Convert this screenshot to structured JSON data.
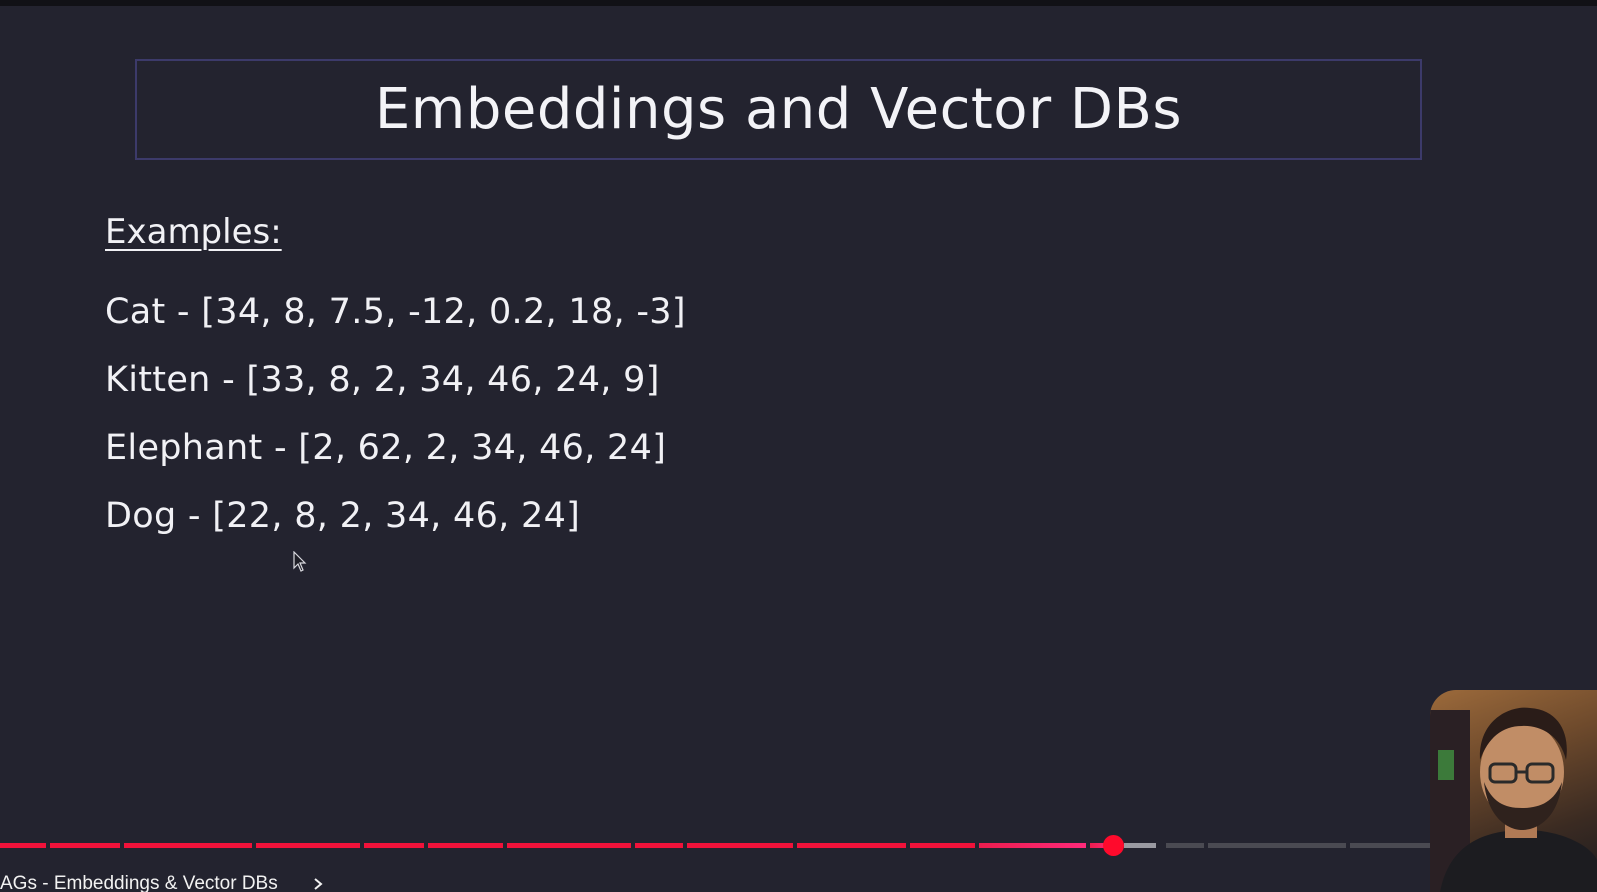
{
  "slide": {
    "title": "Embeddings and Vector DBs",
    "examples_heading": "Examples:",
    "examples": [
      "Cat - [34, 8, 7.5, -12, 0.2, 18, -3]",
      "Kitten - [33, 8, 2, 34, 46, 24, 9]",
      "Elephant - [2, 62, 2, 34, 46, 24]",
      "Dog - [22, 8, 2, 34, 46, 24]"
    ]
  },
  "player": {
    "chapter_title": "AGs - Embeddings & Vector DBs",
    "played_fraction": 0.7,
    "colors": {
      "played": "#f0123a",
      "scrubber": "#ff0a2c",
      "unplayed": "#4a4a52"
    }
  },
  "icons": {
    "cursor": "mouse-pointer-icon",
    "chevron": "chevron-right-icon"
  }
}
